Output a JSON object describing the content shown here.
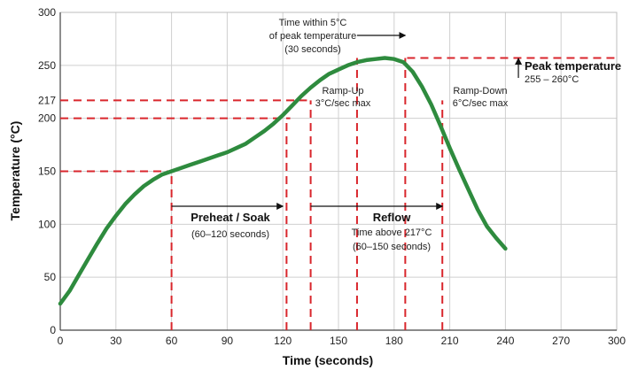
{
  "chart_data": {
    "type": "line",
    "title": "",
    "xlabel": "Time (seconds)",
    "ylabel": "Temperature (°C)",
    "xlim": [
      0,
      300
    ],
    "ylim": [
      0,
      300
    ],
    "grid": true,
    "x_ticks": [
      0,
      30,
      60,
      90,
      120,
      150,
      180,
      210,
      240,
      270,
      300
    ],
    "y_ticks": [
      0,
      50,
      100,
      150,
      200,
      250,
      300
    ],
    "y_extra_ticks": [
      217
    ],
    "series_color": "#2e8b3e",
    "marker_color": "#d9262c",
    "series": [
      {
        "x": [
          0,
          5,
          10,
          15,
          20,
          25,
          30,
          35,
          40,
          45,
          50,
          55,
          60,
          65,
          70,
          75,
          80,
          85,
          90,
          95,
          100,
          105,
          110,
          115,
          120,
          125,
          130,
          135,
          140,
          145,
          150,
          155,
          160,
          165,
          170,
          175,
          180,
          185,
          190,
          195,
          200,
          205,
          210,
          215,
          220,
          225,
          230,
          235,
          240
        ],
        "y": [
          25,
          37,
          52,
          67,
          82,
          96,
          108,
          119,
          128,
          136,
          142,
          147,
          150,
          153,
          156,
          159,
          162,
          165,
          168,
          172,
          176,
          182,
          188,
          195,
          203,
          212,
          221,
          229,
          236,
          242,
          246,
          250,
          253,
          255,
          256,
          257,
          256,
          253,
          244,
          230,
          213,
          193,
          172,
          152,
          133,
          114,
          98,
          87,
          77
        ]
      }
    ],
    "guide_lines": {
      "horizontal": [
        {
          "y": 150,
          "x_end": 60
        },
        {
          "y": 200,
          "x_end": 124
        },
        {
          "y": 217,
          "x_end": 133
        },
        {
          "y": 257,
          "x_start": 187,
          "x_end": 300
        }
      ],
      "vertical": [
        {
          "x": 60,
          "y_end": 150
        },
        {
          "x": 122,
          "y_end": 200
        },
        {
          "x": 135,
          "y_end": 217
        },
        {
          "x": 160,
          "y_end": 257
        },
        {
          "x": 186,
          "y_end": 257
        },
        {
          "x": 206,
          "y_end": 217
        }
      ]
    },
    "annotations": {
      "peak_window_line1": "Time within 5°C",
      "peak_window_line2": "of peak temperature",
      "peak_window_line3": "(30 seconds)",
      "peak_title": "Peak temperature",
      "peak_range": "255 – 260°C",
      "ramp_up_line1": "Ramp-Up",
      "ramp_up_line2": "3°C/sec max",
      "ramp_down_line1": "Ramp-Down",
      "ramp_down_line2": "6°C/sec max",
      "preheat_title": "Preheat / Soak",
      "preheat_range": "(60–120 seconds)",
      "reflow_title": "Reflow",
      "reflow_sub1": "Time above 217°C",
      "reflow_sub2": "(60–150 seconds)"
    }
  }
}
